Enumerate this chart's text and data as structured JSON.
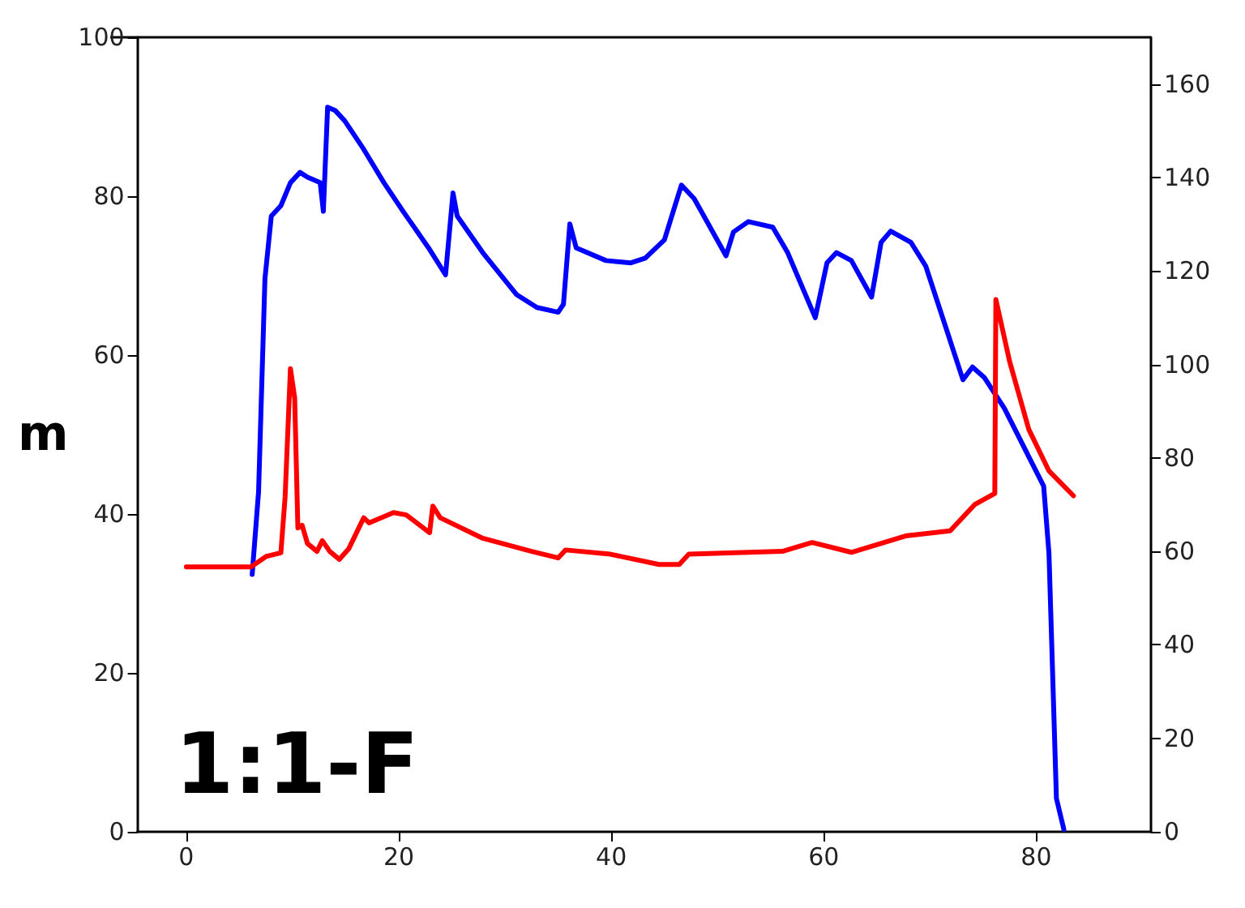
{
  "chart_data": {
    "type": "line",
    "ylabel": "m",
    "annotations": [
      "1:1-F"
    ],
    "xlim": [
      -4.6,
      90.8
    ],
    "xticks": [
      0,
      20,
      40,
      60,
      80
    ],
    "ylim": [
      0,
      100
    ],
    "yticks": [
      0,
      20,
      40,
      60,
      80,
      100
    ],
    "y2lim": [
      0,
      170
    ],
    "y2ticks": [
      0,
      20,
      40,
      60,
      80,
      100,
      120,
      140,
      160
    ],
    "grid": false,
    "marker": "none",
    "line_style": "solid",
    "series": [
      {
        "color": "#0000ff",
        "x": [
          6.2,
          6.8,
          7.4,
          8.0,
          8.9,
          9.8,
          10.7,
          11.4,
          12.6,
          12.9,
          13.3,
          14,
          14.9,
          16.7,
          18.6,
          20.4,
          22.8,
          24.4,
          25.1,
          25.5,
          27.9,
          31.1,
          33,
          35,
          35.5,
          36.1,
          36.7,
          39.5,
          41.8,
          43.2,
          45,
          46.6,
          47.8,
          50.8,
          51.5,
          52.9,
          55.2,
          56.6,
          59.2,
          60.3,
          61.2,
          62.6,
          64.5,
          65.4,
          66.3,
          68.2,
          69.6,
          73.1,
          74,
          75.1,
          77,
          80.7,
          81.2,
          81.9,
          82.6
        ],
        "values": [
          32.4,
          42.8,
          69.6,
          77.5,
          78.8,
          81.7,
          83,
          82.4,
          81.7,
          78.1,
          91.2,
          90.8,
          89.5,
          85.9,
          81.7,
          78.1,
          73.5,
          70.1,
          80.4,
          77.5,
          72.9,
          67.6,
          66,
          65.4,
          66.4,
          76.5,
          73.5,
          71.9,
          71.6,
          72.2,
          74.5,
          81.4,
          79.7,
          72.5,
          75.5,
          76.8,
          76.1,
          72.9,
          64.7,
          71.6,
          72.9,
          71.9,
          67.3,
          74.2,
          75.6,
          74.2,
          71.2,
          56.9,
          58.5,
          57.2,
          53.3,
          43.5,
          35,
          4.2,
          0.3
        ]
      },
      {
        "color": "#ff0000",
        "axis": "y2",
        "x": [
          0,
          6.1,
          7.5,
          8.9,
          9.3,
          9.8,
          10.2,
          10.5,
          10.9,
          11.4,
          12.3,
          12.8,
          13.5,
          14.4,
          15.3,
          16.7,
          17.2,
          19.5,
          20.7,
          22.9,
          23.2,
          23.9,
          27.9,
          32.5,
          35,
          35.7,
          39.9,
          44.5,
          46.4,
          47.3,
          56.1,
          58.9,
          62.6,
          67.7,
          71.9,
          74.2,
          76.1,
          76.2,
          77.5,
          79.3,
          81.2,
          83.5
        ],
        "values": [
          56.7,
          56.7,
          58.9,
          59.7,
          71.7,
          99.1,
          92.8,
          65,
          65.6,
          61.7,
          60,
          62.3,
          60,
          58.3,
          60.6,
          67.2,
          66.1,
          68.3,
          67.8,
          64,
          69.7,
          67.2,
          62.8,
          60,
          58.6,
          60.3,
          59.4,
          57.2,
          57.2,
          59.4,
          60,
          61.9,
          59.8,
          63.3,
          64.4,
          70,
          72.4,
          113.9,
          100.6,
          86.1,
          77.2,
          71.9
        ]
      }
    ]
  }
}
